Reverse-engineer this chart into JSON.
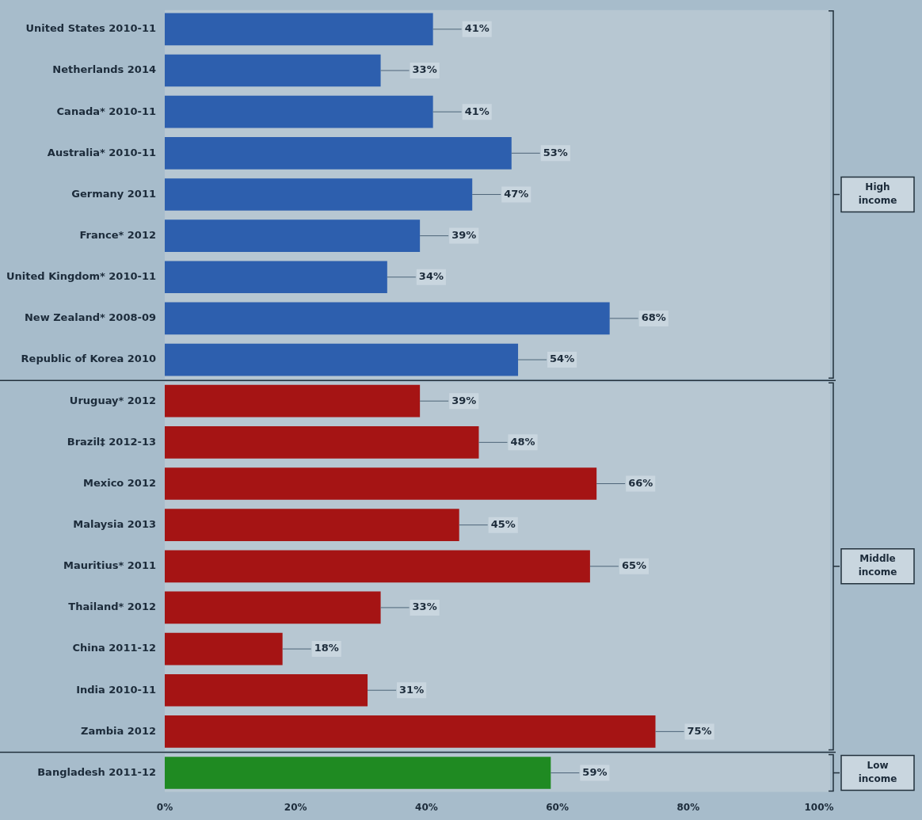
{
  "chart_data": {
    "type": "bar",
    "orientation": "horizontal",
    "categories": [
      "United States 2010-11",
      "Netherlands 2014",
      "Canada* 2010-11",
      "Australia* 2010-11",
      "Germany 2011",
      "France* 2012",
      "United Kingdom* 2010-11",
      "New Zealand* 2008-09",
      "Republic of Korea 2010",
      "Uruguay* 2012",
      "Brazil‡ 2012-13",
      "Mexico 2012",
      "Malaysia 2013",
      "Mauritius* 2011",
      "Thailand* 2012",
      "China 2011-12",
      "India 2010-11",
      "Zambia 2012",
      "Bangladesh 2011-12"
    ],
    "values": [
      41,
      33,
      41,
      53,
      47,
      39,
      34,
      68,
      54,
      39,
      48,
      66,
      45,
      65,
      33,
      18,
      31,
      75,
      59
    ],
    "value_labels": [
      "41%",
      "33%",
      "41%",
      "53%",
      "47%",
      "39%",
      "34%",
      "68%",
      "54%",
      "39%",
      "48%",
      "66%",
      "45%",
      "65%",
      "33%",
      "18%",
      "31%",
      "75%",
      "59%"
    ],
    "colors": [
      "#2d5fae",
      "#2d5fae",
      "#2d5fae",
      "#2d5fae",
      "#2d5fae",
      "#2d5fae",
      "#2d5fae",
      "#2d5fae",
      "#2d5fae",
      "#a51414",
      "#a51414",
      "#a51414",
      "#a51414",
      "#a51414",
      "#a51414",
      "#a51414",
      "#a51414",
      "#a51414",
      "#1f8a22"
    ],
    "xlim": [
      0,
      100
    ],
    "xticks": [
      {
        "value": 0,
        "label": "0%"
      },
      {
        "value": 20,
        "label": "20%"
      },
      {
        "value": 40,
        "label": "40%"
      },
      {
        "value": 60,
        "label": "60%"
      },
      {
        "value": 80,
        "label": "80%"
      },
      {
        "value": 100,
        "label": "100%"
      }
    ],
    "bands": [
      {
        "axis": "y",
        "from": "United States 2010-11",
        "to": "Republic of Korea 2010",
        "label": "High income",
        "color": "#b7c7d2"
      },
      {
        "axis": "y",
        "from": "Uruguay* 2012",
        "to": "Zambia 2012",
        "label": "Middle income",
        "color": "#b7c7d2"
      },
      {
        "axis": "y",
        "from": "Bangladesh 2011-12",
        "to": "Bangladesh 2011-12",
        "label": "Low income",
        "color": "#b7c7d2"
      }
    ],
    "grid": false,
    "legend": false
  }
}
